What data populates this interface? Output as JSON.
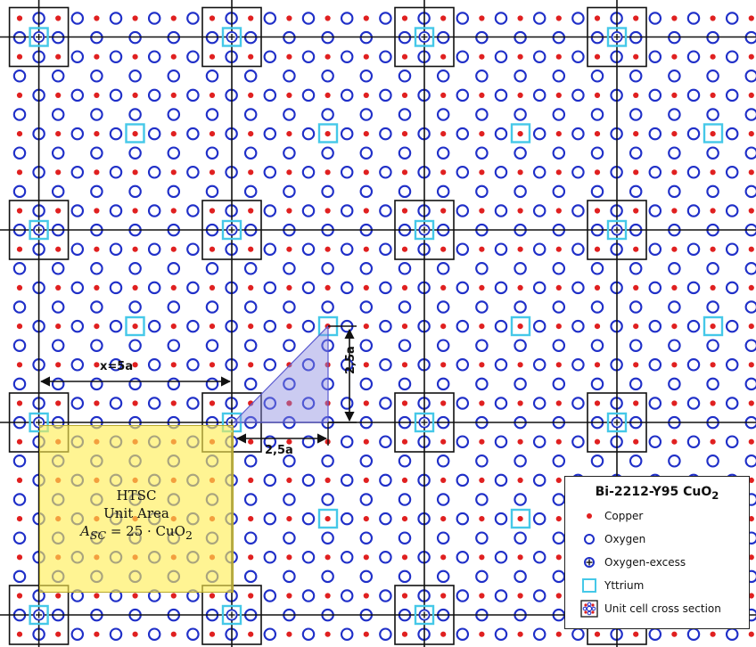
{
  "diagram": {
    "legend": {
      "title": "Bi-2212-Y95 CuO",
      "title_subscript": "2",
      "items": [
        {
          "label": "Copper",
          "icon": "copper-dot-icon",
          "color": "#e02020"
        },
        {
          "label": "Oxygen",
          "icon": "oxygen-ring-icon",
          "color": "#1f2fc8"
        },
        {
          "label": "Oxygen-excess",
          "icon": "oxygen-excess-icon",
          "color": "#1f2fc8"
        },
        {
          "label": "Yttrium",
          "icon": "yttrium-square-icon",
          "color": "#45c8e8"
        },
        {
          "label": "Unit cell cross section",
          "icon": "unit-cell-icon",
          "color": "#222222"
        }
      ]
    },
    "htsc": {
      "line1": "HTSC",
      "line2": "Unit Area",
      "formula_lhs": "A",
      "formula_sub": "SC",
      "formula_rhs": " = 25 · CuO",
      "formula_rhs_sub": "2"
    },
    "labels": {
      "horizontal_span": "x=5a",
      "triangle_base": "2,5a",
      "triangle_height": "2,5a"
    },
    "colors": {
      "copper": "#e02020",
      "oxygen": "#1f2fc8",
      "yttrium": "#45c8e8",
      "grid": "#111111",
      "triangle": "#8c8ce0",
      "htsc_fill": "#ffe850"
    }
  }
}
